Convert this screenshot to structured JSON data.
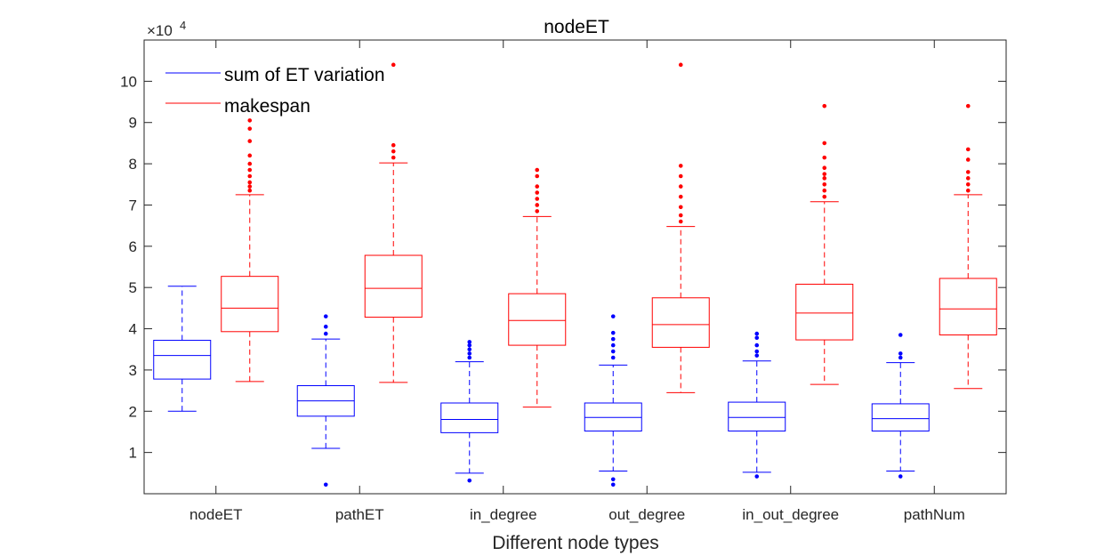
{
  "chart_data": {
    "type": "box",
    "title": "nodeET",
    "xlabel": "Different node types",
    "ylabel": "",
    "y_multiplier_label": "×10",
    "y_multiplier_exponent": "4",
    "ylim": [
      0,
      11
    ],
    "yticks": [
      1,
      2,
      3,
      4,
      5,
      6,
      7,
      8,
      9,
      10
    ],
    "ytick_labels": [
      "1",
      "2",
      "3",
      "4",
      "5",
      "6",
      "7",
      "8",
      "9",
      "10"
    ],
    "categories": [
      "nodeET",
      "pathET",
      "in_degree",
      "out_degree",
      "in_out_degree",
      "pathNum"
    ],
    "grid": false,
    "legend_position": "top-left",
    "series": [
      {
        "name": "sum of ET variation",
        "color": "#0000ff",
        "boxes": [
          {
            "whisker_low": 2.0,
            "q1": 2.78,
            "median": 3.35,
            "q3": 3.72,
            "whisker_high": 5.03,
            "outliers": []
          },
          {
            "whisker_low": 1.1,
            "q1": 1.88,
            "median": 2.25,
            "q3": 2.62,
            "whisker_high": 3.75,
            "outliers": [
              0.22,
              3.88,
              4.05,
              4.3
            ]
          },
          {
            "whisker_low": 0.5,
            "q1": 1.48,
            "median": 1.8,
            "q3": 2.2,
            "whisker_high": 3.2,
            "outliers": [
              0.32,
              3.3,
              3.4,
              3.5,
              3.6,
              3.68
            ]
          },
          {
            "whisker_low": 0.55,
            "q1": 1.52,
            "median": 1.85,
            "q3": 2.2,
            "whisker_high": 3.12,
            "outliers": [
              0.22,
              0.35,
              3.3,
              3.45,
              3.6,
              3.75,
              3.9,
              4.3
            ]
          },
          {
            "whisker_low": 0.52,
            "q1": 1.52,
            "median": 1.85,
            "q3": 2.22,
            "whisker_high": 3.22,
            "outliers": [
              0.42,
              3.35,
              3.45,
              3.6,
              3.78,
              3.88
            ]
          },
          {
            "whisker_low": 0.55,
            "q1": 1.52,
            "median": 1.82,
            "q3": 2.18,
            "whisker_high": 3.18,
            "outliers": [
              0.42,
              3.3,
              3.4,
              3.85
            ]
          }
        ]
      },
      {
        "name": "makespan",
        "color": "#ff0000",
        "boxes": [
          {
            "whisker_low": 2.72,
            "q1": 3.93,
            "median": 4.5,
            "q3": 5.27,
            "whisker_high": 7.25,
            "outliers": [
              7.35,
              7.45,
              7.55,
              7.7,
              7.85,
              8.0,
              8.2,
              8.55,
              8.85,
              9.05
            ]
          },
          {
            "whisker_low": 2.7,
            "q1": 4.28,
            "median": 4.98,
            "q3": 5.78,
            "whisker_high": 8.02,
            "outliers": [
              8.15,
              8.3,
              8.45,
              10.4
            ]
          },
          {
            "whisker_low": 2.1,
            "q1": 3.6,
            "median": 4.2,
            "q3": 4.85,
            "whisker_high": 6.72,
            "outliers": [
              6.85,
              7.0,
              7.15,
              7.3,
              7.45,
              7.7,
              7.85
            ]
          },
          {
            "whisker_low": 2.45,
            "q1": 3.55,
            "median": 4.1,
            "q3": 4.75,
            "whisker_high": 6.48,
            "outliers": [
              6.6,
              6.75,
              6.95,
              7.2,
              7.45,
              7.7,
              7.95,
              10.4
            ]
          },
          {
            "whisker_low": 2.65,
            "q1": 3.73,
            "median": 4.38,
            "q3": 5.08,
            "whisker_high": 7.08,
            "outliers": [
              7.2,
              7.35,
              7.5,
              7.65,
              7.75,
              7.9,
              8.15,
              8.5,
              9.4
            ]
          },
          {
            "whisker_low": 2.55,
            "q1": 3.85,
            "median": 4.48,
            "q3": 5.22,
            "whisker_high": 7.25,
            "outliers": [
              7.35,
              7.5,
              7.65,
              7.8,
              8.1,
              8.35,
              9.4
            ]
          }
        ]
      }
    ]
  }
}
